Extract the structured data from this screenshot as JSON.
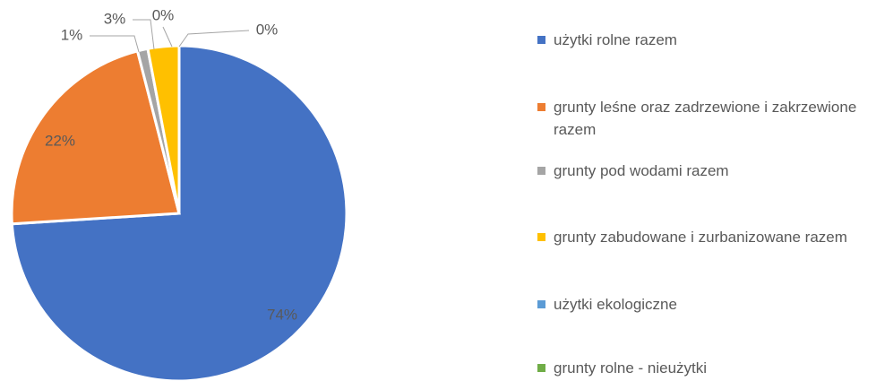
{
  "chart_data": {
    "type": "pie",
    "categories": [
      "użytki rolne razem",
      "grunty leśne oraz zadrzewione i zakrzewione razem",
      "grunty pod wodami razem",
      "grunty zabudowane i zurbanizowane razem",
      "użytki ekologiczne",
      "grunty rolne - nieużytki"
    ],
    "values": [
      74,
      22,
      1,
      3,
      0,
      0
    ],
    "value_labels": [
      "74%",
      "22%",
      "1%",
      "3%",
      "0%",
      "0%"
    ],
    "colors": [
      "#4472c4",
      "#ed7d31",
      "#a5a5a5",
      "#ffc000",
      "#5b9bd5",
      "#70ad47"
    ],
    "legend": "right"
  }
}
